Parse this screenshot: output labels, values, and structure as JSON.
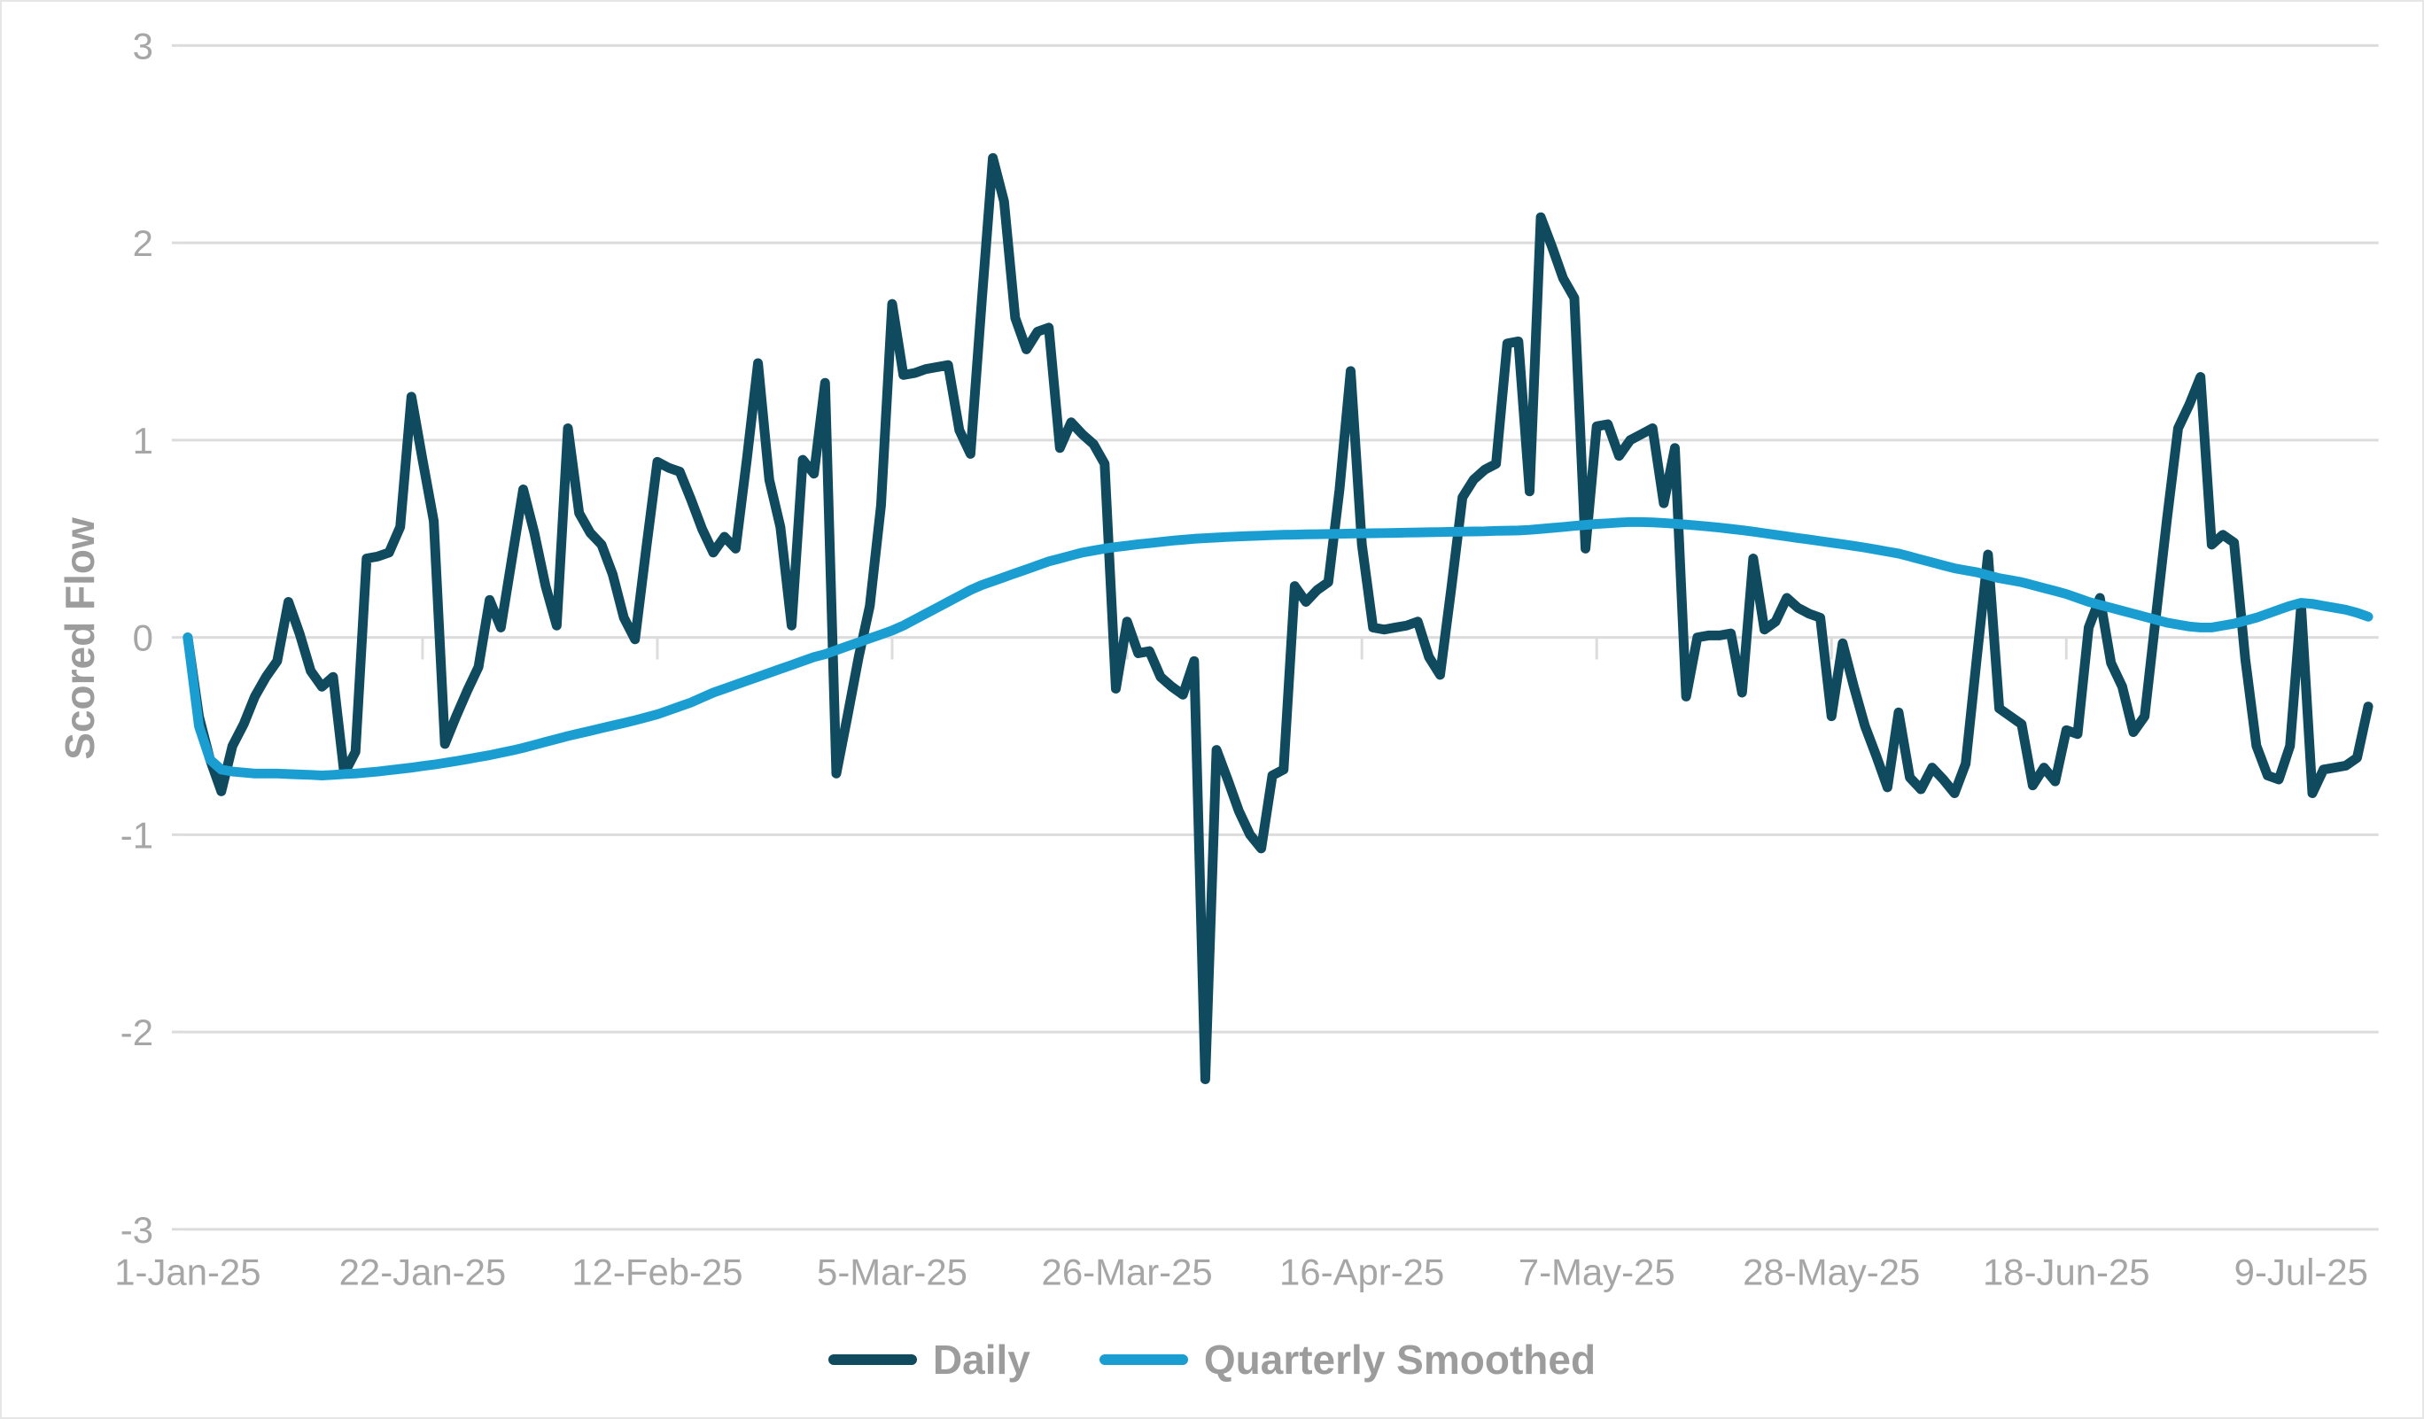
{
  "chart_data": {
    "type": "line",
    "title": "",
    "xlabel": "",
    "ylabel": "Scored Flow",
    "ylim": [
      -3,
      3
    ],
    "y_ticks": [
      3,
      2,
      1,
      0,
      -1,
      -2,
      -3
    ],
    "grid": true,
    "legend_position": "bottom",
    "x_unit": "days since 1-Jan-25, one point per day",
    "x_ticks": [
      {
        "label": "1-Jan-25",
        "day": 0
      },
      {
        "label": "22-Jan-25",
        "day": 21
      },
      {
        "label": "12-Feb-25",
        "day": 42
      },
      {
        "label": "5-Mar-25",
        "day": 63
      },
      {
        "label": "26-Mar-25",
        "day": 84
      },
      {
        "label": "16-Apr-25",
        "day": 105
      },
      {
        "label": "7-May-25",
        "day": 126
      },
      {
        "label": "28-May-25",
        "day": 147
      },
      {
        "label": "18-Jun-25",
        "day": 168
      },
      {
        "label": "9-Jul-25",
        "day": 189
      }
    ],
    "series": [
      {
        "name": "Daily",
        "color": "#0f4a5e",
        "line_width": 11,
        "values": [
          0.0,
          -0.4,
          -0.62,
          -0.78,
          -0.55,
          -0.44,
          -0.3,
          -0.2,
          -0.12,
          0.18,
          0.02,
          -0.17,
          -0.25,
          -0.2,
          -0.69,
          -0.58,
          0.4,
          0.41,
          0.43,
          0.56,
          1.22,
          0.9,
          0.59,
          -0.54,
          -0.4,
          -0.27,
          -0.15,
          0.19,
          0.05,
          0.4,
          0.75,
          0.53,
          0.26,
          0.06,
          1.06,
          0.63,
          0.53,
          0.47,
          0.32,
          0.1,
          -0.01,
          0.45,
          0.89,
          0.86,
          0.84,
          0.7,
          0.55,
          0.43,
          0.51,
          0.45,
          0.9,
          1.39,
          0.8,
          0.56,
          0.06,
          0.9,
          0.83,
          1.29,
          -0.69,
          -0.4,
          -0.1,
          0.16,
          0.67,
          1.69,
          1.33,
          1.34,
          1.36,
          1.37,
          1.38,
          1.05,
          0.93,
          1.7,
          2.43,
          2.21,
          1.62,
          1.46,
          1.55,
          1.57,
          0.96,
          1.09,
          1.03,
          0.98,
          0.88,
          -0.26,
          0.08,
          -0.08,
          -0.07,
          -0.2,
          -0.25,
          -0.29,
          -0.12,
          -2.24,
          -0.57,
          -0.72,
          -0.88,
          -1.0,
          -1.07,
          -0.7,
          -0.67,
          0.26,
          0.18,
          0.24,
          0.28,
          0.75,
          1.35,
          0.47,
          0.05,
          0.04,
          0.05,
          0.06,
          0.08,
          -0.1,
          -0.19,
          0.25,
          0.71,
          0.8,
          0.85,
          0.88,
          1.49,
          1.5,
          0.74,
          2.13,
          1.98,
          1.82,
          1.72,
          0.45,
          1.07,
          1.08,
          0.92,
          1.0,
          1.03,
          1.06,
          0.68,
          0.96,
          -0.3,
          0.0,
          0.01,
          0.01,
          0.02,
          -0.28,
          0.4,
          0.04,
          0.08,
          0.2,
          0.15,
          0.12,
          0.1,
          -0.4,
          -0.03,
          -0.25,
          -0.45,
          -0.6,
          -0.76,
          -0.38,
          -0.71,
          -0.77,
          -0.66,
          -0.72,
          -0.79,
          -0.64,
          -0.1,
          0.42,
          -0.36,
          -0.4,
          -0.44,
          -0.75,
          -0.66,
          -0.73,
          -0.47,
          -0.49,
          0.05,
          0.2,
          -0.13,
          -0.25,
          -0.48,
          -0.4,
          0.1,
          0.6,
          1.06,
          1.18,
          1.32,
          0.47,
          0.52,
          0.48,
          -0.11,
          -0.55,
          -0.7,
          -0.72,
          -0.55,
          0.16,
          -0.79,
          -0.67,
          -0.66,
          -0.65,
          -0.61,
          -0.35
        ]
      },
      {
        "name": "Quarterly Smoothed",
        "color": "#1a9ed2",
        "line_width": 11,
        "values": [
          0.0,
          -0.45,
          -0.62,
          -0.67,
          -0.68,
          -0.685,
          -0.69,
          -0.69,
          -0.69,
          -0.693,
          -0.695,
          -0.697,
          -0.7,
          -0.697,
          -0.693,
          -0.69,
          -0.685,
          -0.68,
          -0.673,
          -0.667,
          -0.66,
          -0.652,
          -0.645,
          -0.636,
          -0.627,
          -0.617,
          -0.607,
          -0.597,
          -0.585,
          -0.573,
          -0.56,
          -0.545,
          -0.53,
          -0.515,
          -0.5,
          -0.487,
          -0.474,
          -0.46,
          -0.447,
          -0.434,
          -0.42,
          -0.405,
          -0.39,
          -0.37,
          -0.35,
          -0.33,
          -0.305,
          -0.28,
          -0.26,
          -0.24,
          -0.22,
          -0.2,
          -0.18,
          -0.16,
          -0.14,
          -0.12,
          -0.1,
          -0.085,
          -0.065,
          -0.045,
          -0.025,
          -0.005,
          0.015,
          0.035,
          0.06,
          0.09,
          0.12,
          0.15,
          0.18,
          0.21,
          0.24,
          0.265,
          0.285,
          0.305,
          0.325,
          0.345,
          0.365,
          0.385,
          0.4,
          0.415,
          0.43,
          0.44,
          0.45,
          0.458,
          0.465,
          0.472,
          0.478,
          0.484,
          0.49,
          0.495,
          0.5,
          0.503,
          0.506,
          0.509,
          0.512,
          0.514,
          0.516,
          0.518,
          0.52,
          0.521,
          0.522,
          0.523,
          0.524,
          0.525,
          0.526,
          0.527,
          0.528,
          0.529,
          0.53,
          0.531,
          0.532,
          0.533,
          0.534,
          0.535,
          0.536,
          0.537,
          0.538,
          0.54,
          0.541,
          0.542,
          0.545,
          0.55,
          0.555,
          0.56,
          0.565,
          0.57,
          0.575,
          0.578,
          0.582,
          0.585,
          0.585,
          0.583,
          0.58,
          0.576,
          0.572,
          0.567,
          0.562,
          0.556,
          0.55,
          0.543,
          0.536,
          0.528,
          0.52,
          0.512,
          0.504,
          0.496,
          0.488,
          0.48,
          0.472,
          0.464,
          0.455,
          0.445,
          0.435,
          0.425,
          0.41,
          0.395,
          0.38,
          0.365,
          0.35,
          0.34,
          0.33,
          0.315,
          0.3,
          0.29,
          0.28,
          0.265,
          0.25,
          0.235,
          0.22,
          0.2,
          0.18,
          0.165,
          0.15,
          0.135,
          0.12,
          0.105,
          0.09,
          0.075,
          0.065,
          0.055,
          0.05,
          0.05,
          0.06,
          0.07,
          0.085,
          0.1,
          0.12,
          0.14,
          0.16,
          0.175,
          0.17,
          0.16,
          0.15,
          0.14,
          0.125,
          0.105
        ]
      }
    ]
  },
  "legend": {
    "items": [
      {
        "label": "Daily"
      },
      {
        "label": "Quarterly Smoothed"
      }
    ]
  },
  "colors": {
    "gridline": "#dcdcdc",
    "tick_text": "#a6a6a6",
    "title_text": "#9c9c9c",
    "background": "#ffffff"
  }
}
